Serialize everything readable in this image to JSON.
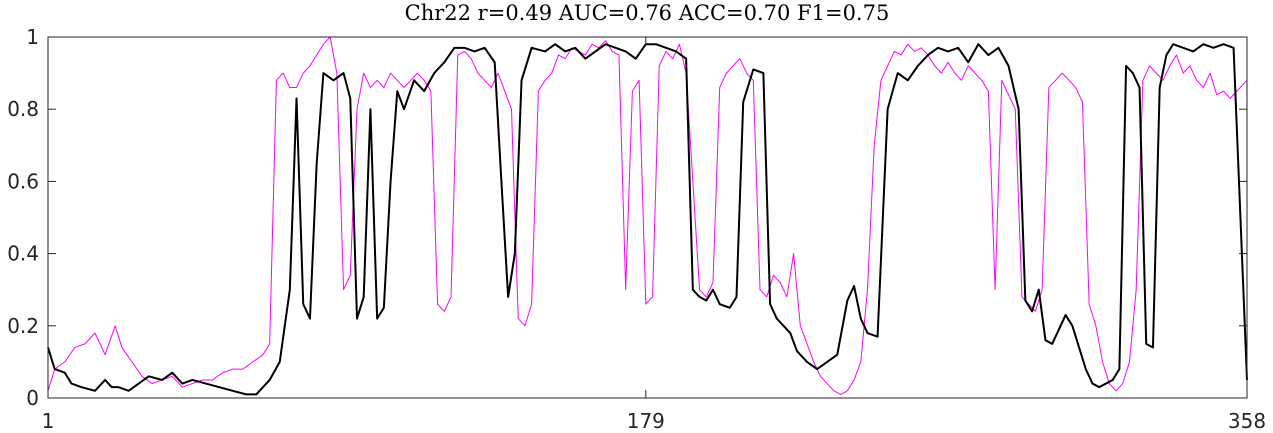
{
  "chart_data": {
    "type": "line",
    "title": "Chr22 r=0.49 AUC=0.76 ACC=0.70 F1=0.75",
    "xlabel": "",
    "ylabel": "",
    "xlim": [
      1,
      358
    ],
    "ylim": [
      0,
      1
    ],
    "x_ticks": [
      1,
      179,
      358
    ],
    "y_ticks": [
      0,
      0.2,
      0.4,
      0.6,
      0.8,
      1
    ],
    "y_tick_labels": [
      "0",
      "0.2",
      "0.4",
      "0.6",
      "0.8",
      "1"
    ],
    "grid": false,
    "legend": "none",
    "series": [
      {
        "color": "#000000",
        "points": [
          [
            1,
            0.14
          ],
          [
            3,
            0.08
          ],
          [
            6,
            0.07
          ],
          [
            8,
            0.04
          ],
          [
            11,
            0.03
          ],
          [
            15,
            0.02
          ],
          [
            18,
            0.05
          ],
          [
            20,
            0.03
          ],
          [
            22,
            0.03
          ],
          [
            25,
            0.02
          ],
          [
            28,
            0.04
          ],
          [
            31,
            0.06
          ],
          [
            35,
            0.05
          ],
          [
            38,
            0.07
          ],
          [
            41,
            0.04
          ],
          [
            44,
            0.05
          ],
          [
            48,
            0.04
          ],
          [
            52,
            0.03
          ],
          [
            56,
            0.02
          ],
          [
            60,
            0.01
          ],
          [
            63,
            0.01
          ],
          [
            67,
            0.05
          ],
          [
            70,
            0.1
          ],
          [
            73,
            0.3
          ],
          [
            75,
            0.83
          ],
          [
            77,
            0.26
          ],
          [
            79,
            0.22
          ],
          [
            81,
            0.65
          ],
          [
            83,
            0.9
          ],
          [
            86,
            0.88
          ],
          [
            89,
            0.9
          ],
          [
            91,
            0.83
          ],
          [
            93,
            0.22
          ],
          [
            95,
            0.28
          ],
          [
            97,
            0.8
          ],
          [
            99,
            0.22
          ],
          [
            101,
            0.25
          ],
          [
            103,
            0.6
          ],
          [
            105,
            0.85
          ],
          [
            107,
            0.8
          ],
          [
            110,
            0.88
          ],
          [
            113,
            0.85
          ],
          [
            116,
            0.9
          ],
          [
            119,
            0.93
          ],
          [
            122,
            0.97
          ],
          [
            125,
            0.97
          ],
          [
            128,
            0.96
          ],
          [
            131,
            0.97
          ],
          [
            134,
            0.93
          ],
          [
            136,
            0.6
          ],
          [
            138,
            0.28
          ],
          [
            140,
            0.4
          ],
          [
            142,
            0.88
          ],
          [
            145,
            0.97
          ],
          [
            149,
            0.96
          ],
          [
            152,
            0.98
          ],
          [
            155,
            0.96
          ],
          [
            158,
            0.97
          ],
          [
            161,
            0.94
          ],
          [
            164,
            0.96
          ],
          [
            167,
            0.98
          ],
          [
            170,
            0.97
          ],
          [
            173,
            0.96
          ],
          [
            176,
            0.94
          ],
          [
            179,
            0.98
          ],
          [
            182,
            0.98
          ],
          [
            185,
            0.97
          ],
          [
            188,
            0.96
          ],
          [
            191,
            0.94
          ],
          [
            193,
            0.3
          ],
          [
            195,
            0.28
          ],
          [
            197,
            0.27
          ],
          [
            199,
            0.3
          ],
          [
            201,
            0.26
          ],
          [
            204,
            0.25
          ],
          [
            206,
            0.28
          ],
          [
            208,
            0.82
          ],
          [
            211,
            0.91
          ],
          [
            214,
            0.9
          ],
          [
            216,
            0.26
          ],
          [
            218,
            0.22
          ],
          [
            220,
            0.2
          ],
          [
            222,
            0.18
          ],
          [
            224,
            0.13
          ],
          [
            227,
            0.1
          ],
          [
            230,
            0.08
          ],
          [
            233,
            0.1
          ],
          [
            236,
            0.12
          ],
          [
            239,
            0.27
          ],
          [
            241,
            0.31
          ],
          [
            243,
            0.22
          ],
          [
            245,
            0.18
          ],
          [
            248,
            0.17
          ],
          [
            251,
            0.8
          ],
          [
            254,
            0.9
          ],
          [
            257,
            0.88
          ],
          [
            260,
            0.92
          ],
          [
            263,
            0.95
          ],
          [
            266,
            0.97
          ],
          [
            269,
            0.96
          ],
          [
            272,
            0.97
          ],
          [
            275,
            0.93
          ],
          [
            278,
            0.98
          ],
          [
            281,
            0.95
          ],
          [
            284,
            0.97
          ],
          [
            287,
            0.92
          ],
          [
            290,
            0.8
          ],
          [
            292,
            0.27
          ],
          [
            294,
            0.24
          ],
          [
            296,
            0.3
          ],
          [
            298,
            0.16
          ],
          [
            300,
            0.15
          ],
          [
            302,
            0.19
          ],
          [
            304,
            0.23
          ],
          [
            306,
            0.2
          ],
          [
            308,
            0.14
          ],
          [
            310,
            0.08
          ],
          [
            312,
            0.04
          ],
          [
            314,
            0.03
          ],
          [
            316,
            0.04
          ],
          [
            318,
            0.05
          ],
          [
            320,
            0.08
          ],
          [
            322,
            0.92
          ],
          [
            324,
            0.9
          ],
          [
            326,
            0.86
          ],
          [
            328,
            0.15
          ],
          [
            330,
            0.14
          ],
          [
            332,
            0.86
          ],
          [
            334,
            0.95
          ],
          [
            336,
            0.98
          ],
          [
            339,
            0.97
          ],
          [
            342,
            0.96
          ],
          [
            345,
            0.98
          ],
          [
            348,
            0.97
          ],
          [
            351,
            0.98
          ],
          [
            354,
            0.97
          ],
          [
            358,
            0.05
          ]
        ]
      },
      {
        "color": "#ff00ff",
        "points": [
          [
            1,
            0.02
          ],
          [
            3,
            0.08
          ],
          [
            6,
            0.1
          ],
          [
            9,
            0.14
          ],
          [
            12,
            0.15
          ],
          [
            15,
            0.18
          ],
          [
            18,
            0.12
          ],
          [
            21,
            0.2
          ],
          [
            23,
            0.14
          ],
          [
            26,
            0.1
          ],
          [
            29,
            0.06
          ],
          [
            32,
            0.04
          ],
          [
            35,
            0.05
          ],
          [
            38,
            0.06
          ],
          [
            41,
            0.03
          ],
          [
            44,
            0.04
          ],
          [
            47,
            0.05
          ],
          [
            50,
            0.05
          ],
          [
            53,
            0.07
          ],
          [
            56,
            0.08
          ],
          [
            59,
            0.08
          ],
          [
            62,
            0.1
          ],
          [
            65,
            0.12
          ],
          [
            67,
            0.15
          ],
          [
            69,
            0.88
          ],
          [
            71,
            0.9
          ],
          [
            73,
            0.86
          ],
          [
            75,
            0.86
          ],
          [
            77,
            0.9
          ],
          [
            79,
            0.92
          ],
          [
            81,
            0.95
          ],
          [
            83,
            0.98
          ],
          [
            85,
            1.0
          ],
          [
            87,
            0.9
          ],
          [
            89,
            0.3
          ],
          [
            91,
            0.34
          ],
          [
            93,
            0.8
          ],
          [
            95,
            0.9
          ],
          [
            97,
            0.86
          ],
          [
            99,
            0.88
          ],
          [
            101,
            0.86
          ],
          [
            103,
            0.9
          ],
          [
            105,
            0.88
          ],
          [
            107,
            0.86
          ],
          [
            109,
            0.88
          ],
          [
            111,
            0.9
          ],
          [
            113,
            0.88
          ],
          [
            115,
            0.85
          ],
          [
            117,
            0.26
          ],
          [
            119,
            0.24
          ],
          [
            121,
            0.28
          ],
          [
            123,
            0.95
          ],
          [
            125,
            0.96
          ],
          [
            127,
            0.94
          ],
          [
            129,
            0.9
          ],
          [
            131,
            0.88
          ],
          [
            133,
            0.86
          ],
          [
            135,
            0.9
          ],
          [
            137,
            0.85
          ],
          [
            139,
            0.8
          ],
          [
            141,
            0.22
          ],
          [
            143,
            0.2
          ],
          [
            145,
            0.26
          ],
          [
            147,
            0.85
          ],
          [
            149,
            0.88
          ],
          [
            151,
            0.9
          ],
          [
            153,
            0.95
          ],
          [
            155,
            0.94
          ],
          [
            157,
            0.97
          ],
          [
            159,
            0.96
          ],
          [
            161,
            0.95
          ],
          [
            163,
            0.98
          ],
          [
            165,
            0.97
          ],
          [
            167,
            0.99
          ],
          [
            169,
            0.96
          ],
          [
            171,
            0.95
          ],
          [
            173,
            0.3
          ],
          [
            175,
            0.85
          ],
          [
            177,
            0.88
          ],
          [
            179,
            0.26
          ],
          [
            181,
            0.28
          ],
          [
            183,
            0.92
          ],
          [
            185,
            0.96
          ],
          [
            187,
            0.94
          ],
          [
            189,
            0.98
          ],
          [
            191,
            0.9
          ],
          [
            193,
            0.6
          ],
          [
            195,
            0.3
          ],
          [
            197,
            0.28
          ],
          [
            199,
            0.32
          ],
          [
            201,
            0.86
          ],
          [
            203,
            0.9
          ],
          [
            205,
            0.92
          ],
          [
            207,
            0.94
          ],
          [
            209,
            0.9
          ],
          [
            211,
            0.88
          ],
          [
            213,
            0.3
          ],
          [
            215,
            0.28
          ],
          [
            217,
            0.34
          ],
          [
            219,
            0.32
          ],
          [
            221,
            0.28
          ],
          [
            223,
            0.4
          ],
          [
            225,
            0.2
          ],
          [
            227,
            0.15
          ],
          [
            229,
            0.1
          ],
          [
            231,
            0.06
          ],
          [
            233,
            0.04
          ],
          [
            235,
            0.02
          ],
          [
            237,
            0.01
          ],
          [
            239,
            0.02
          ],
          [
            241,
            0.05
          ],
          [
            243,
            0.1
          ],
          [
            245,
            0.3
          ],
          [
            247,
            0.7
          ],
          [
            249,
            0.88
          ],
          [
            251,
            0.92
          ],
          [
            253,
            0.96
          ],
          [
            255,
            0.95
          ],
          [
            257,
            0.98
          ],
          [
            259,
            0.96
          ],
          [
            261,
            0.97
          ],
          [
            263,
            0.95
          ],
          [
            265,
            0.92
          ],
          [
            267,
            0.9
          ],
          [
            269,
            0.93
          ],
          [
            271,
            0.9
          ],
          [
            273,
            0.88
          ],
          [
            275,
            0.92
          ],
          [
            277,
            0.9
          ],
          [
            279,
            0.88
          ],
          [
            281,
            0.85
          ],
          [
            283,
            0.3
          ],
          [
            285,
            0.88
          ],
          [
            287,
            0.84
          ],
          [
            289,
            0.8
          ],
          [
            291,
            0.28
          ],
          [
            293,
            0.26
          ],
          [
            295,
            0.24
          ],
          [
            297,
            0.3
          ],
          [
            299,
            0.86
          ],
          [
            301,
            0.88
          ],
          [
            303,
            0.9
          ],
          [
            305,
            0.88
          ],
          [
            307,
            0.86
          ],
          [
            309,
            0.82
          ],
          [
            311,
            0.26
          ],
          [
            313,
            0.2
          ],
          [
            315,
            0.1
          ],
          [
            317,
            0.04
          ],
          [
            319,
            0.02
          ],
          [
            321,
            0.04
          ],
          [
            323,
            0.1
          ],
          [
            325,
            0.3
          ],
          [
            327,
            0.88
          ],
          [
            329,
            0.92
          ],
          [
            331,
            0.9
          ],
          [
            333,
            0.88
          ],
          [
            335,
            0.92
          ],
          [
            337,
            0.95
          ],
          [
            339,
            0.9
          ],
          [
            341,
            0.92
          ],
          [
            343,
            0.88
          ],
          [
            345,
            0.86
          ],
          [
            347,
            0.9
          ],
          [
            349,
            0.84
          ],
          [
            351,
            0.85
          ],
          [
            353,
            0.83
          ],
          [
            355,
            0.85
          ],
          [
            358,
            0.88
          ]
        ]
      }
    ]
  }
}
